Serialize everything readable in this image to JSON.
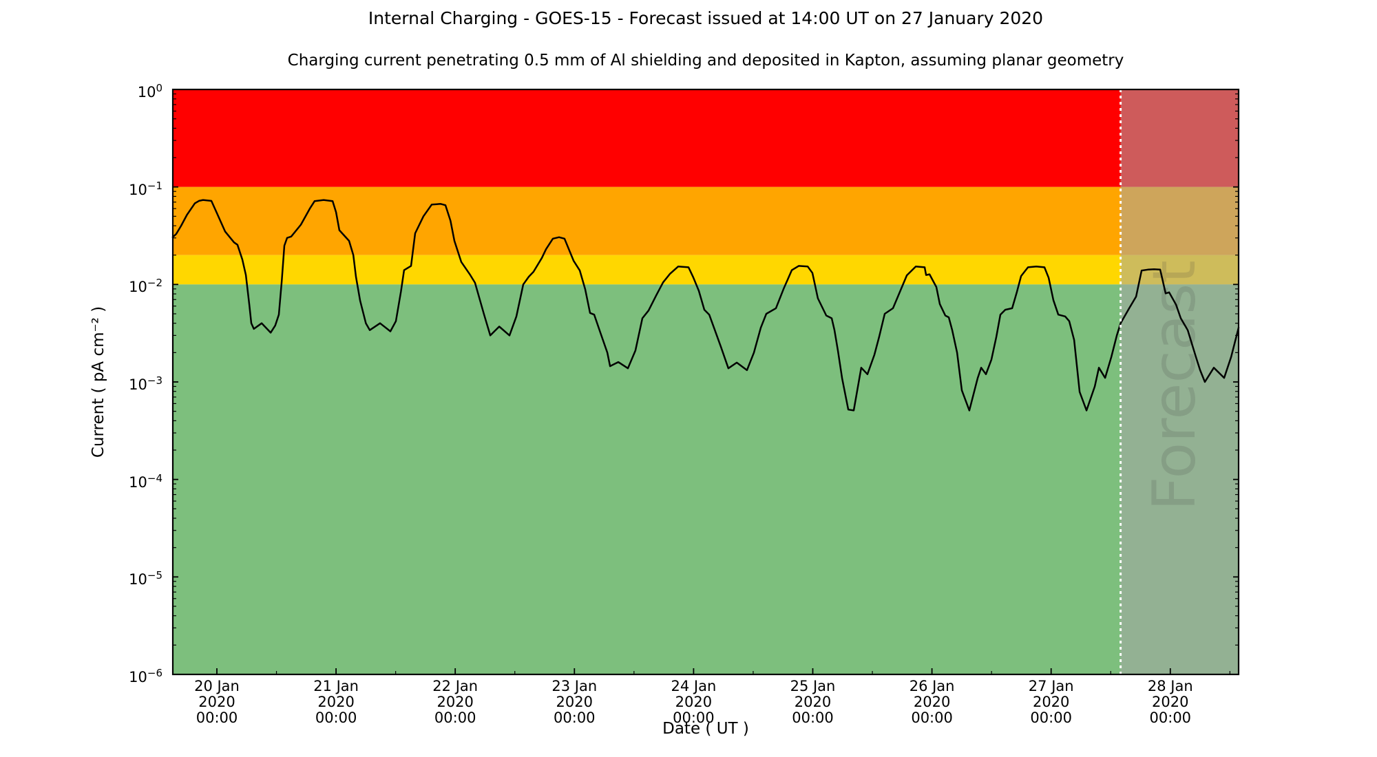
{
  "header": {
    "title": "Internal Charging - GOES-15 - Forecast issued at 14:00 UT on 27 January 2020",
    "subtitle": "Charging current penetrating 0.5 mm of Al shielding and deposited in Kapton, assuming planar geometry"
  },
  "chart_data": {
    "type": "line",
    "title": "Internal Charging - GOES-15 - Forecast issued at 14:00 UT on 27 January 2020",
    "subtitle": "Charging current penetrating 0.5 mm of Al shielding and deposited in Kapton, assuming planar geometry",
    "xlabel": "Date ( UT )",
    "ylabel": "Current ( pA cm⁻² )",
    "grid": false,
    "legend": "none",
    "x_axis": {
      "label": "Date ( UT )",
      "units": "days since 20 Jan 2020 00:00 UT",
      "start_day_offset": -0.3697,
      "end_day_offset": 8.5731,
      "minor_tick_interval_days": 0.5,
      "major_ticks": [
        {
          "day_offset": 0,
          "lines": [
            "20 Jan",
            "2020",
            "00:00"
          ]
        },
        {
          "day_offset": 1,
          "lines": [
            "21 Jan",
            "2020",
            "00:00"
          ]
        },
        {
          "day_offset": 2,
          "lines": [
            "22 Jan",
            "2020",
            "00:00"
          ]
        },
        {
          "day_offset": 3,
          "lines": [
            "23 Jan",
            "2020",
            "00:00"
          ]
        },
        {
          "day_offset": 4,
          "lines": [
            "24 Jan",
            "2020",
            "00:00"
          ]
        },
        {
          "day_offset": 5,
          "lines": [
            "25 Jan",
            "2020",
            "00:00"
          ]
        },
        {
          "day_offset": 6,
          "lines": [
            "26 Jan",
            "2020",
            "00:00"
          ]
        },
        {
          "day_offset": 7,
          "lines": [
            "27 Jan",
            "2020",
            "00:00"
          ]
        },
        {
          "day_offset": 8,
          "lines": [
            "28 Jan",
            "2020",
            "00:00"
          ]
        }
      ]
    },
    "y_axis": {
      "label": "Current ( pA cm⁻² )",
      "scale": "log",
      "min": 1e-06,
      "max": 1,
      "ticks": [
        {
          "base": "10",
          "exp": "0"
        },
        {
          "base": "10",
          "exp": "−1"
        },
        {
          "base": "10",
          "exp": "−2"
        },
        {
          "base": "10",
          "exp": "−3"
        },
        {
          "base": "10",
          "exp": "−4"
        },
        {
          "base": "10",
          "exp": "−5"
        },
        {
          "base": "10",
          "exp": "−6"
        }
      ]
    },
    "zones": [
      {
        "name": "red-alert",
        "from": 0.1,
        "to": 1.0,
        "color": "#ff0000"
      },
      {
        "name": "orange-alert",
        "from": 0.02,
        "to": 0.1,
        "color": "#ffa500"
      },
      {
        "name": "yellow-alert",
        "from": 0.01,
        "to": 0.02,
        "color": "#ffd700"
      },
      {
        "name": "green-safe",
        "from": 1e-06,
        "to": 0.01,
        "color": "#7dbf7d"
      }
    ],
    "forecast": {
      "label": "Forecast",
      "start_day_offset": 7.583,
      "issued_at": "14:00 UT on 27 January 2020",
      "overlay_color": "rgba(165,165,165,0.55)",
      "divider_color": "#ffffff",
      "divider_style": "dotted"
    },
    "series": [
      {
        "name": "charging-current",
        "color": "#000000",
        "width": 2.5,
        "points": [
          [
            -0.37,
            0.0305
          ],
          [
            -0.341,
            0.033
          ],
          [
            -0.3,
            0.04
          ],
          [
            -0.25,
            0.052
          ],
          [
            -0.185,
            0.068
          ],
          [
            -0.15,
            0.072
          ],
          [
            -0.116,
            0.0735
          ],
          [
            -0.046,
            0.072
          ],
          [
            0.0,
            0.054
          ],
          [
            0.069,
            0.035
          ],
          [
            0.144,
            0.027
          ],
          [
            0.173,
            0.0255
          ],
          [
            0.214,
            0.018
          ],
          [
            0.243,
            0.0125
          ],
          [
            0.272,
            0.0062
          ],
          [
            0.289,
            0.004
          ],
          [
            0.31,
            0.0035
          ],
          [
            0.376,
            0.004
          ],
          [
            0.451,
            0.0032
          ],
          [
            0.49,
            0.0038
          ],
          [
            0.52,
            0.0049
          ],
          [
            0.545,
            0.011
          ],
          [
            0.566,
            0.025
          ],
          [
            0.589,
            0.03
          ],
          [
            0.624,
            0.031
          ],
          [
            0.705,
            0.041
          ],
          [
            0.78,
            0.06
          ],
          [
            0.82,
            0.0715
          ],
          [
            0.896,
            0.0735
          ],
          [
            0.971,
            0.0715
          ],
          [
            1.0,
            0.055
          ],
          [
            1.028,
            0.036
          ],
          [
            1.109,
            0.028
          ],
          [
            1.145,
            0.02
          ],
          [
            1.167,
            0.012
          ],
          [
            1.202,
            0.0068
          ],
          [
            1.25,
            0.004
          ],
          [
            1.283,
            0.0034
          ],
          [
            1.369,
            0.004
          ],
          [
            1.456,
            0.0033
          ],
          [
            1.502,
            0.0042
          ],
          [
            1.545,
            0.0085
          ],
          [
            1.571,
            0.014
          ],
          [
            1.629,
            0.0155
          ],
          [
            1.664,
            0.0335
          ],
          [
            1.733,
            0.05
          ],
          [
            1.803,
            0.066
          ],
          [
            1.878,
            0.067
          ],
          [
            1.918,
            0.065
          ],
          [
            1.96,
            0.045
          ],
          [
            1.993,
            0.028
          ],
          [
            2.051,
            0.017
          ],
          [
            2.126,
            0.0125
          ],
          [
            2.166,
            0.0104
          ],
          [
            2.242,
            0.0049
          ],
          [
            2.294,
            0.003
          ],
          [
            2.369,
            0.0037
          ],
          [
            2.455,
            0.003
          ],
          [
            2.513,
            0.0047
          ],
          [
            2.571,
            0.01
          ],
          [
            2.617,
            0.012
          ],
          [
            2.657,
            0.0135
          ],
          [
            2.727,
            0.0187
          ],
          [
            2.762,
            0.023
          ],
          [
            2.819,
            0.0295
          ],
          [
            2.871,
            0.0305
          ],
          [
            2.917,
            0.0295
          ],
          [
            2.993,
            0.0175
          ],
          [
            3.045,
            0.0139
          ],
          [
            3.091,
            0.0089
          ],
          [
            3.131,
            0.0051
          ],
          [
            3.166,
            0.0049
          ],
          [
            3.218,
            0.0032
          ],
          [
            3.276,
            0.002
          ],
          [
            3.299,
            0.00145
          ],
          [
            3.368,
            0.0016
          ],
          [
            3.449,
            0.00138
          ],
          [
            3.512,
            0.0021
          ],
          [
            3.57,
            0.0045
          ],
          [
            3.622,
            0.0054
          ],
          [
            3.686,
            0.0077
          ],
          [
            3.744,
            0.0105
          ],
          [
            3.801,
            0.0128
          ],
          [
            3.871,
            0.0153
          ],
          [
            3.957,
            0.015
          ],
          [
            3.998,
            0.0118
          ],
          [
            4.044,
            0.0086
          ],
          [
            4.09,
            0.0055
          ],
          [
            4.131,
            0.0049
          ],
          [
            4.171,
            0.0036
          ],
          [
            4.229,
            0.0023
          ],
          [
            4.292,
            0.00138
          ],
          [
            4.362,
            0.00158
          ],
          [
            4.448,
            0.00132
          ],
          [
            4.506,
            0.002
          ],
          [
            4.564,
            0.0036
          ],
          [
            4.61,
            0.005
          ],
          [
            4.691,
            0.0057
          ],
          [
            4.755,
            0.009
          ],
          [
            4.824,
            0.014
          ],
          [
            4.882,
            0.0155
          ],
          [
            4.957,
            0.0153
          ],
          [
            4.997,
            0.0131
          ],
          [
            5.043,
            0.0072
          ],
          [
            5.113,
            0.0048
          ],
          [
            5.159,
            0.0045
          ],
          [
            5.182,
            0.0034
          ],
          [
            5.211,
            0.0021
          ],
          [
            5.246,
            0.00109
          ],
          [
            5.298,
            0.00052
          ],
          [
            5.344,
            0.00051
          ],
          [
            5.407,
            0.0014
          ],
          [
            5.459,
            0.0012
          ],
          [
            5.517,
            0.0019
          ],
          [
            5.557,
            0.0029
          ],
          [
            5.604,
            0.005
          ],
          [
            5.673,
            0.0057
          ],
          [
            5.731,
            0.0084
          ],
          [
            5.789,
            0.0124
          ],
          [
            5.864,
            0.0153
          ],
          [
            5.939,
            0.015
          ],
          [
            5.951,
            0.0125
          ],
          [
            5.98,
            0.0127
          ],
          [
            6.037,
            0.0094
          ],
          [
            6.066,
            0.0063
          ],
          [
            6.112,
            0.0048
          ],
          [
            6.141,
            0.0046
          ],
          [
            6.17,
            0.0034
          ],
          [
            6.211,
            0.002
          ],
          [
            6.251,
            0.00082
          ],
          [
            6.314,
            0.00051
          ],
          [
            6.384,
            0.0011
          ],
          [
            6.413,
            0.0014
          ],
          [
            6.453,
            0.0012
          ],
          [
            6.499,
            0.0017
          ],
          [
            6.54,
            0.0029
          ],
          [
            6.574,
            0.0049
          ],
          [
            6.615,
            0.0055
          ],
          [
            6.673,
            0.0057
          ],
          [
            6.713,
            0.0084
          ],
          [
            6.748,
            0.0122
          ],
          [
            6.806,
            0.015
          ],
          [
            6.875,
            0.0153
          ],
          [
            6.944,
            0.015
          ],
          [
            6.979,
            0.0117
          ],
          [
            7.019,
            0.0069
          ],
          [
            7.06,
            0.0049
          ],
          [
            7.118,
            0.0047
          ],
          [
            7.152,
            0.0042
          ],
          [
            7.193,
            0.0027
          ],
          [
            7.239,
            0.00079
          ],
          [
            7.297,
            0.00051
          ],
          [
            7.366,
            0.0009
          ],
          [
            7.401,
            0.0014
          ],
          [
            7.453,
            0.0011
          ],
          [
            7.505,
            0.0018
          ],
          [
            7.551,
            0.003
          ],
          [
            7.583,
            0.004
          ],
          [
            7.655,
            0.0057
          ],
          [
            7.713,
            0.0075
          ],
          [
            7.759,
            0.0139
          ],
          [
            7.811,
            0.0142
          ],
          [
            7.863,
            0.0143
          ],
          [
            7.915,
            0.0142
          ],
          [
            7.961,
            0.0081
          ],
          [
            7.99,
            0.0083
          ],
          [
            8.048,
            0.0062
          ],
          [
            8.088,
            0.0045
          ],
          [
            8.146,
            0.0034
          ],
          [
            8.215,
            0.0018
          ],
          [
            8.25,
            0.00132
          ],
          [
            8.29,
            0.001
          ],
          [
            8.365,
            0.0014
          ],
          [
            8.452,
            0.0011
          ],
          [
            8.51,
            0.0018
          ],
          [
            8.573,
            0.0036
          ]
        ]
      }
    ]
  }
}
